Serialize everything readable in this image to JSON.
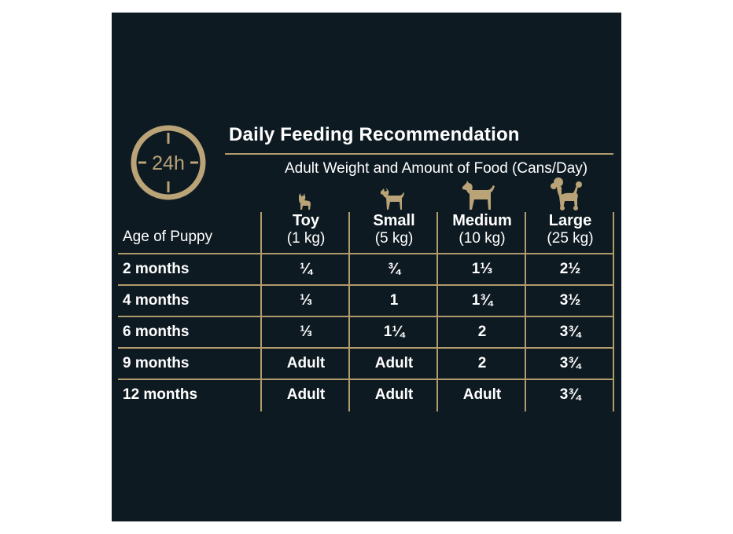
{
  "clock_badge": {
    "label": "24h",
    "icon": "24h-clock-icon",
    "color": "#b9a377"
  },
  "title": "Daily Feeding Recommendation",
  "subtitle": "Adult Weight and Amount of Food (Cans/Day)",
  "age_header": "Age of Puppy",
  "columns": [
    {
      "name": "Toy",
      "weight": "(1 kg)",
      "icon": "toy-dog-icon"
    },
    {
      "name": "Small",
      "weight": "(5 kg)",
      "icon": "small-dog-icon"
    },
    {
      "name": "Medium",
      "weight": "(10 kg)",
      "icon": "medium-dog-icon"
    },
    {
      "name": "Large",
      "weight": "(25 kg)",
      "icon": "poodle-icon"
    }
  ],
  "rows": [
    {
      "age": "2 months",
      "values": [
        "¼",
        "¾",
        "1⅓",
        "2½"
      ]
    },
    {
      "age": "4 months",
      "values": [
        "⅓",
        "1",
        "1¾",
        "3½"
      ]
    },
    {
      "age": "6 months",
      "values": [
        "⅓",
        "1¼",
        "2",
        "3¾"
      ]
    },
    {
      "age": "9 months",
      "values": [
        "Adult",
        "Adult",
        "2",
        "3¾"
      ]
    },
    {
      "age": "12 months",
      "values": [
        "Adult",
        "Adult",
        "Adult",
        "3¾"
      ]
    }
  ],
  "colors": {
    "background": "#0e1a22",
    "accent": "#b19a6c",
    "text": "#ffffff"
  }
}
